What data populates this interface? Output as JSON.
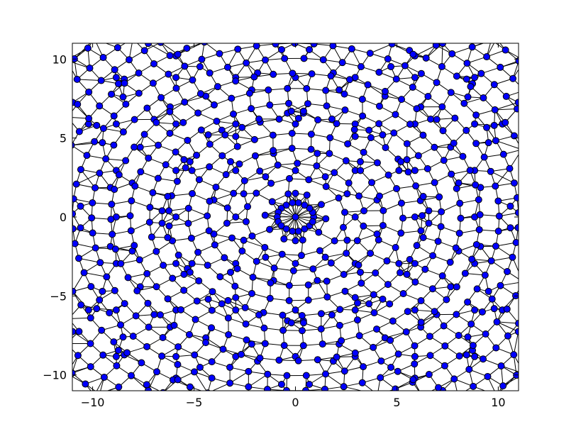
{
  "chart_data": {
    "type": "scatter",
    "title": "",
    "xlabel": "",
    "ylabel": "",
    "xlim": [
      -11,
      11
    ],
    "ylim": [
      -11,
      11
    ],
    "grid": false,
    "x_ticks": [
      -10,
      -5,
      0,
      5,
      10
    ],
    "x_tick_labels": [
      "−10",
      "−5",
      "0",
      "5",
      "10"
    ],
    "y_ticks": [
      -10,
      -5,
      0,
      5,
      10
    ],
    "y_tick_labels": [
      "−10",
      "−5",
      "0",
      "5",
      "10"
    ],
    "marker_color": "#0000ff",
    "marker_edge_color": "#000000",
    "edge_color": "#000000",
    "series": [
      {
        "points": [
          [
            0,
            0
          ],
          [
            0.9,
            0
          ],
          [
            0.85,
            0.3
          ],
          [
            0.7,
            0.55
          ],
          [
            0.45,
            0.75
          ],
          [
            0.15,
            0.9
          ],
          [
            -0.15,
            0.9
          ],
          [
            -0.45,
            0.75
          ],
          [
            -0.7,
            0.55
          ],
          [
            -0.85,
            0.3
          ],
          [
            -0.9,
            0
          ],
          [
            -0.85,
            -0.3
          ],
          [
            -0.7,
            -0.55
          ],
          [
            -0.45,
            -0.75
          ],
          [
            -0.15,
            -0.9
          ],
          [
            0.15,
            -0.9
          ],
          [
            0.45,
            -0.75
          ],
          [
            0.7,
            -0.55
          ],
          [
            0.85,
            -0.3
          ],
          [
            0,
            1.5
          ],
          [
            0,
            -1.5
          ],
          [
            0.4,
            6.7
          ],
          [
            -0.2,
            6.7
          ],
          [
            0.4,
            -6.7
          ],
          [
            -0.2,
            -6.7
          ],
          [
            -6.3,
            1.3
          ],
          [
            -6.3,
            -1.3
          ],
          [
            6.3,
            1.3
          ],
          [
            6.3,
            -1.3
          ],
          [
            -3.2,
            3.5
          ],
          [
            -3.2,
            -3.5
          ],
          [
            3.2,
            3.5
          ],
          [
            3.2,
            -3.5
          ],
          [
            -5.2,
            -3.5
          ],
          [
            -5.2,
            3.5
          ],
          [
            5.2,
            3.5
          ],
          [
            5.2,
            -3.5
          ],
          [
            -4.3,
            5.2
          ],
          [
            -4.3,
            -5.2
          ],
          [
            4.3,
            5.2
          ],
          [
            4.3,
            -5.2
          ],
          [
            -1.8,
            6.2
          ],
          [
            -1.8,
            -6.2
          ],
          [
            1.8,
            6.2
          ],
          [
            1.8,
            -6.2
          ],
          [
            -8.5,
            7.6
          ],
          [
            -8.5,
            -7.6
          ],
          [
            8.5,
            7.6
          ],
          [
            8.5,
            -7.6
          ],
          [
            -5.8,
            10.3
          ],
          [
            -5.8,
            -10.3
          ],
          [
            5.8,
            10.3
          ],
          [
            5.8,
            -10.3
          ],
          [
            -9.8,
            5.8
          ],
          [
            -9.8,
            -5.8
          ],
          [
            9.8,
            5.8
          ],
          [
            9.8,
            -5.8
          ]
        ]
      }
    ]
  }
}
